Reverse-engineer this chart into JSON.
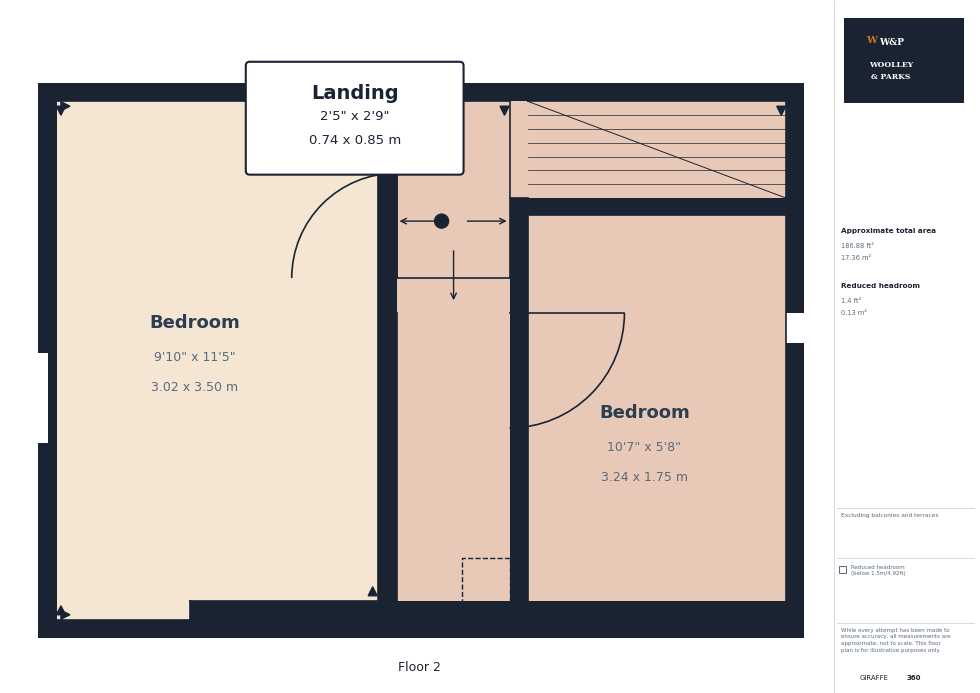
{
  "bg_color": "#ffffff",
  "dark_color": "#1a2332",
  "bedroom1_color": "#f5e6d3",
  "bedroom2_color": "#e8c9b8",
  "landing_color": "#e8c9b8",
  "stair_color": "#e8c9b8",
  "title": "Floor 2",
  "landing_label": "Landing",
  "landing_dim1": "2'5\" x 2'9\"",
  "landing_dim2": "0.74 x 0.85 m",
  "bedroom1_label": "Bedroom",
  "bedroom1_dim1": "9'10\" x 11'5\"",
  "bedroom1_dim2": "3.02 x 3.50 m",
  "bedroom2_label": "Bedroom",
  "bedroom2_dim1": "10'7\" x 5'8\"",
  "bedroom2_dim2": "3.24 x 1.75 m",
  "sidebar_text1_bold": "Approximate total area",
  "sidebar_text1_sup": "ft",
  "sidebar_text1_line1": "186.88 ft²",
  "sidebar_text1_line2": "17.36 m²",
  "sidebar_text2_bold": "Reduced headroom",
  "sidebar_text2_line1": "1.4 ft²",
  "sidebar_text2_line2": "0.13 m²",
  "sidebar_note1": "Excluding balconies and terraces",
  "sidebar_note2": "Reduced headroom\n(below 1.5m/4.92ft)",
  "sidebar_note3": "While every attempt has been made to\nensure accuracy, all measurements are\napproximate, not to scale. This floor\nplan is for illustrative purposes only.",
  "sidebar_brand": "GIRAFFE 360",
  "text_color": "#2c3e50",
  "dim_color": "#5a6a7a"
}
